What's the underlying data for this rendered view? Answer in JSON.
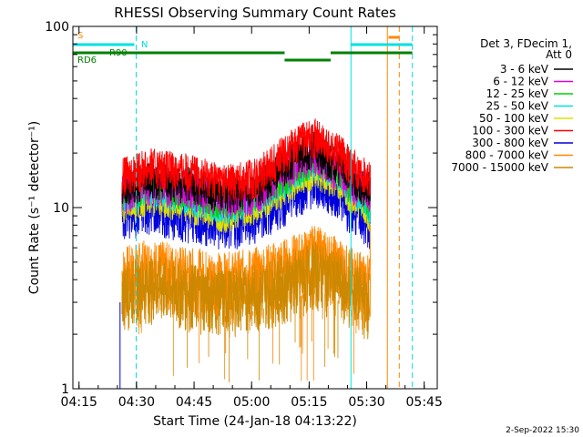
{
  "chart_data": {
    "type": "line",
    "title": "RHESSI Observing Summary Count Rates",
    "xlabel": "Start Time (24-Jan-18 04:13:22)",
    "ylabel": "Count Rate (s⁻¹ detector⁻¹)",
    "yscale": "log",
    "ylim": [
      1,
      100
    ],
    "xlim_minutes": [
      0,
      95
    ],
    "x_ticks": [
      {
        "t": 1.6,
        "label": "04:15"
      },
      {
        "t": 16.6,
        "label": "04:30"
      },
      {
        "t": 31.6,
        "label": "04:45"
      },
      {
        "t": 46.6,
        "label": "05:00"
      },
      {
        "t": 61.6,
        "label": "05:15"
      },
      {
        "t": 76.6,
        "label": "05:30"
      },
      {
        "t": 91.6,
        "label": "05:45"
      }
    ],
    "y_ticks": [
      {
        "v": 1,
        "label": "1"
      },
      {
        "v": 10,
        "label": "10"
      },
      {
        "v": 100,
        "label": "100"
      }
    ],
    "legend_header": [
      "Det 3, FDecim 1,",
      "Att 0"
    ],
    "series": [
      {
        "name": "3 - 6 keV",
        "color": "#000000"
      },
      {
        "name": "6 - 12 keV",
        "color": "#e000e0"
      },
      {
        "name": "12 - 25 keV",
        "color": "#00d000"
      },
      {
        "name": "25 - 50 keV",
        "color": "#00e0e0"
      },
      {
        "name": "50 - 100 keV",
        "color": "#e0e000"
      },
      {
        "name": "100 - 300 keV",
        "color": "#ff0000"
      },
      {
        "name": "300 - 800 keV",
        "color": "#0000dd"
      },
      {
        "name": "800 - 7000 keV",
        "color": "#ff8800"
      },
      {
        "name": "7000 - 15000 keV",
        "color": "#cc8800"
      }
    ],
    "rate_profile": {
      "t": [
        12.8,
        20,
        30,
        40,
        48,
        55,
        60,
        63,
        66,
        70,
        72,
        73,
        77.5
      ],
      "envelope": {
        "red": [
          15,
          17,
          16,
          14,
          15,
          20,
          24,
          25,
          22,
          20,
          18,
          17,
          15
        ],
        "blue": [
          9,
          10,
          9,
          8,
          9,
          11,
          13,
          14,
          13,
          12,
          10,
          10,
          8
        ],
        "orange": [
          4.5,
          5,
          4.5,
          4.2,
          4.5,
          5,
          5.5,
          6,
          5.5,
          5,
          4.5,
          4.5,
          4
        ]
      }
    },
    "flags": {
      "saa_label": "S",
      "night_label": "N",
      "rate_label": "R90",
      "rd_label": "RD6",
      "bars": [
        {
          "flag": "night",
          "color": "#00e0e0",
          "row": 1,
          "t_start": 0.0,
          "t_end": 16.0
        },
        {
          "flag": "night",
          "color": "#00e0e0",
          "row": 1,
          "t_start": 72.5,
          "t_end": 88.5
        },
        {
          "flag": "rate",
          "color": "#008000",
          "row": 2,
          "t_start": 0.0,
          "t_end": 55.2
        },
        {
          "flag": "rate",
          "color": "#008000",
          "row": 3,
          "t_start": 55.2,
          "t_end": 67.2
        },
        {
          "flag": "rate",
          "color": "#008000",
          "row": 2,
          "t_start": 67.2,
          "t_end": 88.5
        },
        {
          "flag": "saa",
          "color": "#ff8800",
          "row": 0,
          "t_start": 82.3,
          "t_end": 85.1
        }
      ],
      "vlines": [
        {
          "t": 0.0,
          "color": "#00e0e0",
          "dash": true
        },
        {
          "t": 16.5,
          "color": "#00e0e0",
          "dash": true
        },
        {
          "t": 72.5,
          "color": "#00e0e0",
          "dash": false
        },
        {
          "t": 82.0,
          "color": "#ff8800",
          "dash": false
        },
        {
          "t": 85.1,
          "color": "#ff8800",
          "dash": true
        },
        {
          "t": 88.5,
          "color": "#00e0e0",
          "dash": true
        }
      ]
    }
  },
  "footer": {
    "date": "2-Sep-2022 15:30"
  }
}
